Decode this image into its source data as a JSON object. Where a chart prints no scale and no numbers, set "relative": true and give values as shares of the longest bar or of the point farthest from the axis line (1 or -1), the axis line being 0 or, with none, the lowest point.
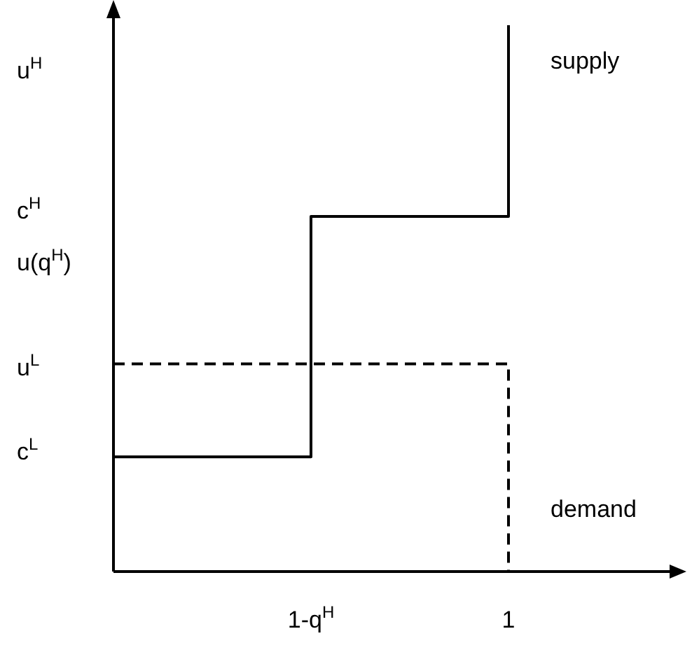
{
  "chart_data": {
    "type": "step",
    "relative": true,
    "categories": [
      null,
      "1-q$^{H}$",
      "1"
    ],
    "annotations": [
      "u$^{H}$",
      "c$^{H}$",
      "u(q$^{H}$)",
      "u$^{L}$",
      "c$^{L}$"
    ],
    "series": [
      {
        "name": "supply",
        "color": "#000000",
        "line_style": "solid",
        "values": [
          0.21,
          0.65,
          1
        ]
      },
      {
        "name": "demand",
        "color": "#000000",
        "line_style": "dashed",
        "values": [
          0.38,
          0.38,
          0
        ]
      }
    ],
    "marker": "none"
  }
}
